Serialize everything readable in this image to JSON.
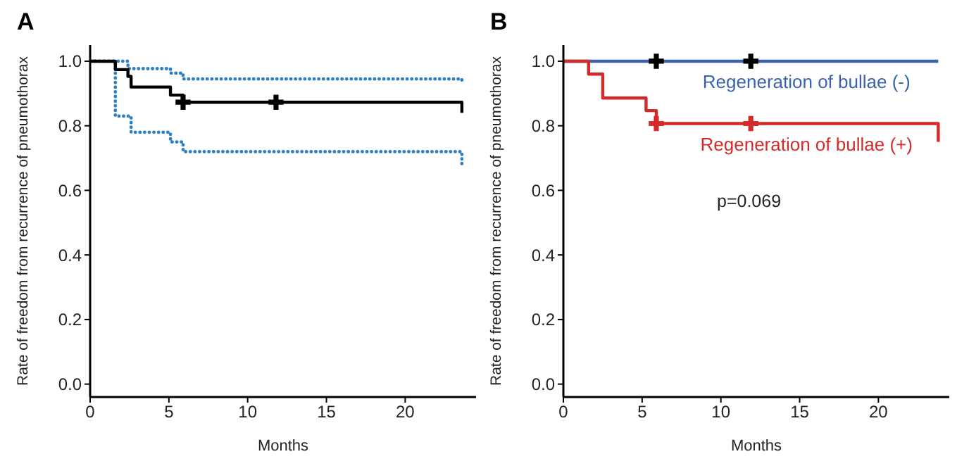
{
  "chart_data": [
    {
      "type": "step",
      "title": "A",
      "xlabel": "Months",
      "ylabel": "Rate of freedom from recurrence of pneumothorax",
      "xlim": [
        0,
        24.5
      ],
      "xticks": [
        0,
        5,
        10,
        15,
        20
      ],
      "ylim": [
        -0.04,
        1.05
      ],
      "yticks": [
        {
          "value": 0,
          "label": "0.0"
        },
        {
          "value": 0.2,
          "label": "0.2"
        },
        {
          "value": 0.4,
          "label": "0.4"
        },
        {
          "value": 0.6,
          "label": "0.6"
        },
        {
          "value": 0.8,
          "label": "0.8"
        },
        {
          "value": 1,
          "label": "1.0"
        }
      ],
      "grid": false,
      "legend": false,
      "series": [
        {
          "color": "#2f7fc1",
          "line_style": "dotted",
          "x": [
            0,
            2.4,
            5.1,
            5.9,
            23.6,
            23.6
          ],
          "values": [
            1,
            0.977,
            0.963,
            0.945,
            0.945,
            0.94
          ]
        },
        {
          "color": "#2f7fc1",
          "line_style": "dotted",
          "x": [
            0,
            1.6,
            2.6,
            5.1,
            5.9,
            23.6,
            23.6
          ],
          "values": [
            1,
            0.83,
            0.78,
            0.75,
            0.72,
            0.72,
            0.68
          ]
        },
        {
          "color": "#000000",
          "line_style": "solid",
          "x": [
            0,
            1.6,
            2.4,
            2.6,
            5.1,
            5.9,
            23.6,
            23.6
          ],
          "values": [
            1,
            0.974,
            0.953,
            0.92,
            0.895,
            0.873,
            0.873,
            0.84
          ]
        },
        {
          "type": "scatter",
          "color": "#000000",
          "marker": "cross",
          "x": [
            5.9,
            11.8
          ],
          "values": [
            0.873,
            0.873
          ]
        }
      ]
    },
    {
      "type": "step",
      "title": "B",
      "xlabel": "Months",
      "ylabel": "Rate of freedom from recurrence of pneumothorax",
      "xlim": [
        0,
        24.5
      ],
      "xticks": [
        0,
        5,
        10,
        15,
        20
      ],
      "ylim": [
        -0.04,
        1.05
      ],
      "yticks": [
        {
          "value": 0,
          "label": "0.0"
        },
        {
          "value": 0.2,
          "label": "0.2"
        },
        {
          "value": 0.4,
          "label": "0.4"
        },
        {
          "value": 0.6,
          "label": "0.6"
        },
        {
          "value": 0.8,
          "label": "0.8"
        },
        {
          "value": 1,
          "label": "1.0"
        }
      ],
      "grid": false,
      "annotations": [
        "p=0.069"
      ],
      "series": [
        {
          "name": "Regeneration of bullae (-)",
          "color": "#3b62ad",
          "line_style": "solid",
          "x": [
            0,
            23.8
          ],
          "values": [
            1,
            1
          ]
        },
        {
          "name": "Regeneration of bullae (+)",
          "color": "#d42a2a",
          "line_style": "solid",
          "x": [
            0,
            1.6,
            2.5,
            5.25,
            5.9,
            23.8,
            23.8
          ],
          "values": [
            1,
            0.96,
            0.886,
            0.847,
            0.807,
            0.807,
            0.75
          ]
        },
        {
          "type": "scatter",
          "color": "#000000",
          "marker": "cross",
          "x": [
            5.9,
            11.9
          ],
          "values": [
            1,
            1
          ]
        },
        {
          "type": "scatter",
          "color": "#d42a2a",
          "marker": "cross",
          "x": [
            5.9,
            11.9
          ],
          "values": [
            0.807,
            0.807
          ]
        }
      ]
    }
  ]
}
